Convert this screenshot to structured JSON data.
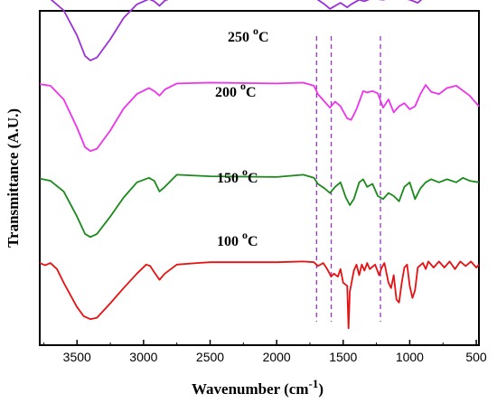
{
  "chart_data": {
    "type": "line",
    "title": "",
    "xlabel": "Wavenumber (cm",
    "xlabel_superscript": "-1",
    "xlabel_suffix": ")",
    "ylabel": "Transmittance (A.U.)",
    "xlim": [
      3780,
      480
    ],
    "x_reversed": true,
    "y_ticks_shown": false,
    "grid": false,
    "legend": "none",
    "x_ticks": [
      3500,
      3000,
      2500,
      2000,
      1500,
      1000,
      500
    ],
    "x_tick_labels": [
      "3500",
      "3000",
      "2500",
      "2000",
      "1500",
      "1000",
      "500"
    ],
    "reference_lines": [
      1700,
      1590,
      1220
    ],
    "reference_line_color": "#9933cc",
    "series": [
      {
        "name": "250 °C",
        "label_main": "250",
        "label_deg": "o",
        "label_unit": "C",
        "color": "#9b30d9",
        "offset": 3.0,
        "points": [
          [
            3780,
            0.95
          ],
          [
            3700,
            0.93
          ],
          [
            3600,
            0.78
          ],
          [
            3500,
            0.45
          ],
          [
            3440,
            0.18
          ],
          [
            3400,
            0.12
          ],
          [
            3350,
            0.16
          ],
          [
            3250,
            0.4
          ],
          [
            3150,
            0.68
          ],
          [
            3050,
            0.86
          ],
          [
            2960,
            0.93
          ],
          [
            2920,
            0.9
          ],
          [
            2880,
            0.84
          ],
          [
            2840,
            0.91
          ],
          [
            2750,
            0.97
          ],
          [
            2500,
            0.99
          ],
          [
            2000,
            0.99
          ],
          [
            1800,
            0.98
          ],
          [
            1720,
            0.96
          ],
          [
            1690,
            0.92
          ],
          [
            1640,
            0.86
          ],
          [
            1600,
            0.8
          ],
          [
            1570,
            0.83
          ],
          [
            1520,
            0.88
          ],
          [
            1470,
            0.82
          ],
          [
            1440,
            0.86
          ],
          [
            1380,
            0.92
          ],
          [
            1340,
            0.9
          ],
          [
            1300,
            0.93
          ],
          [
            1250,
            0.93
          ],
          [
            1200,
            0.92
          ],
          [
            1150,
            0.94
          ],
          [
            1100,
            0.93
          ],
          [
            1050,
            0.94
          ],
          [
            1000,
            0.92
          ],
          [
            940,
            0.88
          ],
          [
            900,
            0.94
          ],
          [
            850,
            0.96
          ],
          [
            750,
            0.95
          ],
          [
            600,
            0.96
          ],
          [
            480,
            0.96
          ]
        ]
      },
      {
        "name": "200 °C",
        "label_main": "200",
        "label_deg": "o",
        "label_unit": "C",
        "color": "#ee33ee",
        "offset": 2.0,
        "points": [
          [
            3780,
            0.95
          ],
          [
            3700,
            0.93
          ],
          [
            3600,
            0.75
          ],
          [
            3500,
            0.38
          ],
          [
            3440,
            0.12
          ],
          [
            3400,
            0.07
          ],
          [
            3350,
            0.1
          ],
          [
            3250,
            0.34
          ],
          [
            3150,
            0.63
          ],
          [
            3050,
            0.82
          ],
          [
            2960,
            0.9
          ],
          [
            2920,
            0.86
          ],
          [
            2880,
            0.8
          ],
          [
            2840,
            0.88
          ],
          [
            2750,
            0.96
          ],
          [
            2500,
            0.97
          ],
          [
            2000,
            0.96
          ],
          [
            1800,
            0.97
          ],
          [
            1720,
            0.93
          ],
          [
            1690,
            0.82
          ],
          [
            1640,
            0.72
          ],
          [
            1600,
            0.64
          ],
          [
            1560,
            0.72
          ],
          [
            1520,
            0.66
          ],
          [
            1470,
            0.5
          ],
          [
            1440,
            0.48
          ],
          [
            1400,
            0.62
          ],
          [
            1350,
            0.86
          ],
          [
            1320,
            0.84
          ],
          [
            1280,
            0.86
          ],
          [
            1240,
            0.83
          ],
          [
            1200,
            0.64
          ],
          [
            1160,
            0.75
          ],
          [
            1120,
            0.58
          ],
          [
            1080,
            0.66
          ],
          [
            1040,
            0.7
          ],
          [
            1000,
            0.62
          ],
          [
            960,
            0.66
          ],
          [
            920,
            0.82
          ],
          [
            880,
            0.94
          ],
          [
            840,
            0.85
          ],
          [
            780,
            0.82
          ],
          [
            720,
            0.9
          ],
          [
            650,
            0.93
          ],
          [
            550,
            0.8
          ],
          [
            480,
            0.66
          ]
        ]
      },
      {
        "name": "150 °C",
        "label_main": "150",
        "label_deg": "o",
        "label_unit": "C",
        "color": "#1a8a1a",
        "offset": 1.0,
        "points": [
          [
            3780,
            0.85
          ],
          [
            3700,
            0.82
          ],
          [
            3600,
            0.68
          ],
          [
            3500,
            0.35
          ],
          [
            3440,
            0.12
          ],
          [
            3400,
            0.08
          ],
          [
            3350,
            0.12
          ],
          [
            3250,
            0.35
          ],
          [
            3150,
            0.6
          ],
          [
            3050,
            0.8
          ],
          [
            2960,
            0.86
          ],
          [
            2920,
            0.82
          ],
          [
            2880,
            0.68
          ],
          [
            2840,
            0.74
          ],
          [
            2750,
            0.9
          ],
          [
            2500,
            0.88
          ],
          [
            2000,
            0.87
          ],
          [
            1800,
            0.9
          ],
          [
            1720,
            0.86
          ],
          [
            1690,
            0.78
          ],
          [
            1640,
            0.72
          ],
          [
            1600,
            0.66
          ],
          [
            1560,
            0.74
          ],
          [
            1520,
            0.8
          ],
          [
            1480,
            0.6
          ],
          [
            1450,
            0.5
          ],
          [
            1420,
            0.58
          ],
          [
            1380,
            0.8
          ],
          [
            1350,
            0.84
          ],
          [
            1320,
            0.74
          ],
          [
            1280,
            0.78
          ],
          [
            1240,
            0.62
          ],
          [
            1200,
            0.58
          ],
          [
            1160,
            0.66
          ],
          [
            1120,
            0.62
          ],
          [
            1080,
            0.55
          ],
          [
            1040,
            0.74
          ],
          [
            1000,
            0.8
          ],
          [
            960,
            0.58
          ],
          [
            920,
            0.72
          ],
          [
            880,
            0.8
          ],
          [
            840,
            0.84
          ],
          [
            780,
            0.8
          ],
          [
            720,
            0.84
          ],
          [
            650,
            0.8
          ],
          [
            600,
            0.86
          ],
          [
            550,
            0.82
          ],
          [
            480,
            0.8
          ]
        ]
      },
      {
        "name": "100 °C",
        "label_main": "100",
        "label_deg": "o",
        "label_unit": "C",
        "color": "#e81111",
        "offset": 0.0,
        "points": [
          [
            3780,
            0.88
          ],
          [
            3740,
            0.85
          ],
          [
            3700,
            0.88
          ],
          [
            3650,
            0.8
          ],
          [
            3600,
            0.62
          ],
          [
            3500,
            0.3
          ],
          [
            3450,
            0.18
          ],
          [
            3400,
            0.14
          ],
          [
            3350,
            0.16
          ],
          [
            3250,
            0.35
          ],
          [
            3150,
            0.55
          ],
          [
            3050,
            0.74
          ],
          [
            2980,
            0.86
          ],
          [
            2950,
            0.84
          ],
          [
            2920,
            0.76
          ],
          [
            2880,
            0.66
          ],
          [
            2840,
            0.74
          ],
          [
            2750,
            0.86
          ],
          [
            2600,
            0.88
          ],
          [
            2500,
            0.89
          ],
          [
            2000,
            0.89
          ],
          [
            1800,
            0.9
          ],
          [
            1720,
            0.89
          ],
          [
            1690,
            0.84
          ],
          [
            1650,
            0.88
          ],
          [
            1620,
            0.8
          ],
          [
            1590,
            0.7
          ],
          [
            1570,
            0.74
          ],
          [
            1540,
            0.7
          ],
          [
            1520,
            0.8
          ],
          [
            1500,
            0.62
          ],
          [
            1470,
            0.58
          ],
          [
            1460,
            0.02
          ],
          [
            1450,
            0.5
          ],
          [
            1420,
            0.78
          ],
          [
            1400,
            0.86
          ],
          [
            1380,
            0.72
          ],
          [
            1360,
            0.86
          ],
          [
            1340,
            0.78
          ],
          [
            1320,
            0.88
          ],
          [
            1300,
            0.8
          ],
          [
            1260,
            0.86
          ],
          [
            1230,
            0.72
          ],
          [
            1210,
            0.82
          ],
          [
            1190,
            0.88
          ],
          [
            1160,
            0.62
          ],
          [
            1140,
            0.55
          ],
          [
            1120,
            0.72
          ],
          [
            1100,
            0.4
          ],
          [
            1080,
            0.36
          ],
          [
            1060,
            0.62
          ],
          [
            1040,
            0.82
          ],
          [
            1020,
            0.86
          ],
          [
            1000,
            0.58
          ],
          [
            980,
            0.42
          ],
          [
            960,
            0.52
          ],
          [
            940,
            0.82
          ],
          [
            900,
            0.88
          ],
          [
            880,
            0.8
          ],
          [
            860,
            0.9
          ],
          [
            820,
            0.82
          ],
          [
            780,
            0.9
          ],
          [
            740,
            0.82
          ],
          [
            700,
            0.9
          ],
          [
            660,
            0.8
          ],
          [
            620,
            0.9
          ],
          [
            580,
            0.84
          ],
          [
            540,
            0.9
          ],
          [
            500,
            0.82
          ],
          [
            480,
            0.86
          ]
        ]
      }
    ]
  }
}
